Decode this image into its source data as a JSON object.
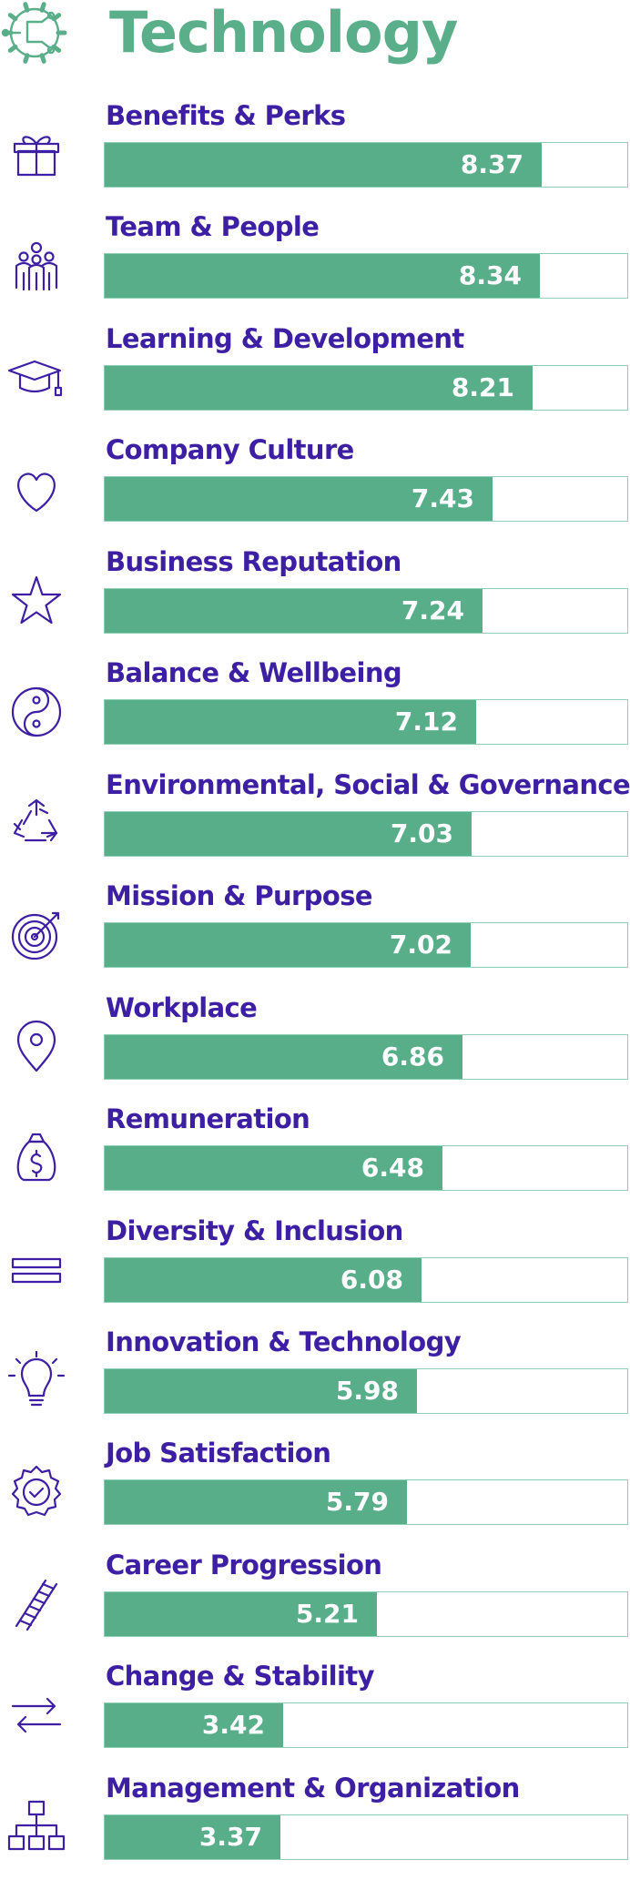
{
  "title": "Technology",
  "colors": {
    "accent": "#5aaf8a",
    "label": "#3d1fa3",
    "bar_fill": "#57ae89",
    "bar_border": "#8fcfb5",
    "icon": "#3d1fa3"
  },
  "chart_data": {
    "type": "bar",
    "orientation": "horizontal",
    "title": "Technology",
    "xlim": [
      0,
      10
    ],
    "grid": false,
    "legend": "none",
    "categories": [
      "Benefits & Perks",
      "Team & People",
      "Learning & Development",
      "Company Culture",
      "Business Reputation",
      "Balance & Wellbeing",
      "Environmental, Social & Governance",
      "Mission & Purpose",
      "Workplace",
      "Remuneration",
      "Diversity & Inclusion",
      "Innovation & Technology",
      "Job Satisfaction",
      "Career Progression",
      "Change & Stability",
      "Management & Organization"
    ],
    "values": [
      8.37,
      8.34,
      8.21,
      7.43,
      7.24,
      7.12,
      7.03,
      7.02,
      6.86,
      6.48,
      6.08,
      5.98,
      5.79,
      5.21,
      3.42,
      3.37
    ],
    "value_labels": [
      "8.37",
      "8.34",
      "8.21",
      "7.43",
      "7.24",
      "7.12",
      "7.03",
      "7.02",
      "6.86",
      "6.48",
      "6.08",
      "5.98",
      "5.79",
      "5.21",
      "3.42",
      "3.37"
    ],
    "icons": [
      "gift-icon",
      "team-icon",
      "graduation-cap-icon",
      "heart-icon",
      "star-icon",
      "yin-yang-icon",
      "recycle-icon",
      "target-icon",
      "location-pin-icon",
      "money-bag-icon",
      "equals-icon",
      "lightbulb-icon",
      "badge-check-icon",
      "ladder-icon",
      "arrows-exchange-icon",
      "org-chart-icon"
    ]
  }
}
